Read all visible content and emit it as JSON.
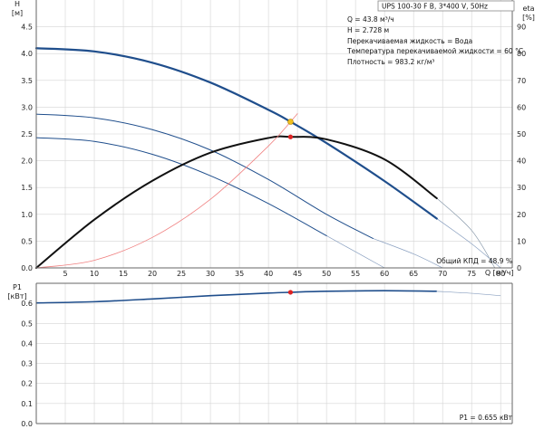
{
  "pump_label": "UPS 100-30 F B, 3*400 V, 50Hz",
  "info": {
    "lines": [
      "Q = 43.8 м³/ч",
      "H = 2.728 м",
      "Перекачиваемая жидкость = Вода",
      "Температура перекачиваемой жидкости = 60 °C",
      "Плотность = 983.2 кг/м³"
    ]
  },
  "efficiency_label": "Общий КПД = 48.9 %",
  "power_label": "P1 = 0.655 кВт",
  "axes": {
    "h_label": "H",
    "h_unit": "[м]",
    "eta_label": "eta",
    "eta_unit": "[%]",
    "q_label": "Q",
    "q_unit": "[м³/ч]",
    "p1_label": "P1",
    "p1_unit": "[кВт]"
  },
  "colors": {
    "pump_curve": "#1f4e8c",
    "efficiency_curve": "#111111",
    "system_curve": "#f08080",
    "duty_point": "#f0c020",
    "marker": "#dd2222"
  },
  "chart_data": [
    {
      "type": "line",
      "title": "UPS 100-30 F B, 3*400 V, 50Hz",
      "xlabel": "Q [м³/ч]",
      "ylabel": "H [м]",
      "y2label": "eta [%]",
      "xlim": [
        0,
        82
      ],
      "ylim": [
        0,
        5
      ],
      "y2lim": [
        0,
        100
      ],
      "xticks": [
        5,
        10,
        15,
        20,
        25,
        30,
        35,
        40,
        45,
        50,
        55,
        60,
        65,
        70,
        75,
        80
      ],
      "yticks": [
        0,
        0.5,
        1.0,
        1.5,
        2.0,
        2.5,
        3.0,
        3.5,
        4.0,
        4.5
      ],
      "y2ticks": [
        0,
        10,
        20,
        30,
        40,
        50,
        60,
        70,
        80,
        90
      ],
      "grid": true,
      "series": [
        {
          "kind": "pump_h_speed3",
          "axis": "left",
          "points": [
            [
              0,
              4.1
            ],
            [
              10,
              4.04
            ],
            [
              20,
              3.83
            ],
            [
              30,
              3.46
            ],
            [
              40,
              2.95
            ],
            [
              43.8,
              2.728
            ],
            [
              50,
              2.33
            ],
            [
              60,
              1.62
            ],
            [
              69,
              0.92
            ]
          ],
          "extension": [
            [
              69,
              0.92
            ],
            [
              75,
              0.45
            ],
            [
              80,
              0
            ]
          ]
        },
        {
          "kind": "pump_h_speed2",
          "axis": "left",
          "points": [
            [
              0,
              2.87
            ],
            [
              10,
              2.8
            ],
            [
              20,
              2.58
            ],
            [
              30,
              2.2
            ],
            [
              40,
              1.65
            ],
            [
              50,
              1.0
            ],
            [
              58,
              0.55
            ]
          ],
          "extension": [
            [
              58,
              0.55
            ],
            [
              65,
              0.26
            ],
            [
              70,
              0
            ]
          ]
        },
        {
          "kind": "pump_h_speed1",
          "axis": "left",
          "points": [
            [
              0,
              2.43
            ],
            [
              10,
              2.36
            ],
            [
              20,
              2.12
            ],
            [
              30,
              1.72
            ],
            [
              40,
              1.2
            ],
            [
              50,
              0.6
            ]
          ],
          "extension": [
            [
              50,
              0.6
            ],
            [
              55,
              0.3
            ],
            [
              60,
              0
            ]
          ]
        },
        {
          "kind": "efficiency",
          "axis": "right",
          "points": [
            [
              0,
              0
            ],
            [
              10,
              18
            ],
            [
              20,
              32.5
            ],
            [
              30,
              43
            ],
            [
              40,
              48.5
            ],
            [
              43.8,
              48.9
            ],
            [
              50,
              48
            ],
            [
              60,
              40.5
            ],
            [
              69,
              26
            ]
          ],
          "extension": [
            [
              69,
              26
            ],
            [
              75,
              14
            ],
            [
              79,
              0
            ]
          ]
        },
        {
          "kind": "system_curve",
          "axis": "left",
          "points": [
            [
              0,
              0
            ],
            [
              10,
              0.142
            ],
            [
              20,
              0.569
            ],
            [
              30,
              1.28
            ],
            [
              40,
              2.275
            ],
            [
              43.8,
              2.728
            ],
            [
              45,
              2.88
            ]
          ]
        }
      ],
      "duty_point": {
        "q": 43.8,
        "h": 2.728,
        "eta": 48.9
      }
    },
    {
      "type": "line",
      "xlabel": "Q [м³/ч]",
      "ylabel": "P1 [кВт]",
      "xlim": [
        0,
        82
      ],
      "ylim": [
        0,
        0.7
      ],
      "yticks": [
        0,
        0.1,
        0.2,
        0.3,
        0.4,
        0.5,
        0.6
      ],
      "grid": true,
      "series": [
        {
          "kind": "p1",
          "points": [
            [
              0,
              0.602
            ],
            [
              10,
              0.608
            ],
            [
              20,
              0.622
            ],
            [
              30,
              0.638
            ],
            [
              40,
              0.651
            ],
            [
              43.8,
              0.655
            ],
            [
              50,
              0.66
            ],
            [
              60,
              0.663
            ],
            [
              69,
              0.66
            ]
          ],
          "extension": [
            [
              69,
              0.66
            ],
            [
              75,
              0.65
            ],
            [
              80,
              0.638
            ]
          ]
        }
      ],
      "duty_point": {
        "q": 43.8,
        "p1": 0.655
      }
    }
  ]
}
